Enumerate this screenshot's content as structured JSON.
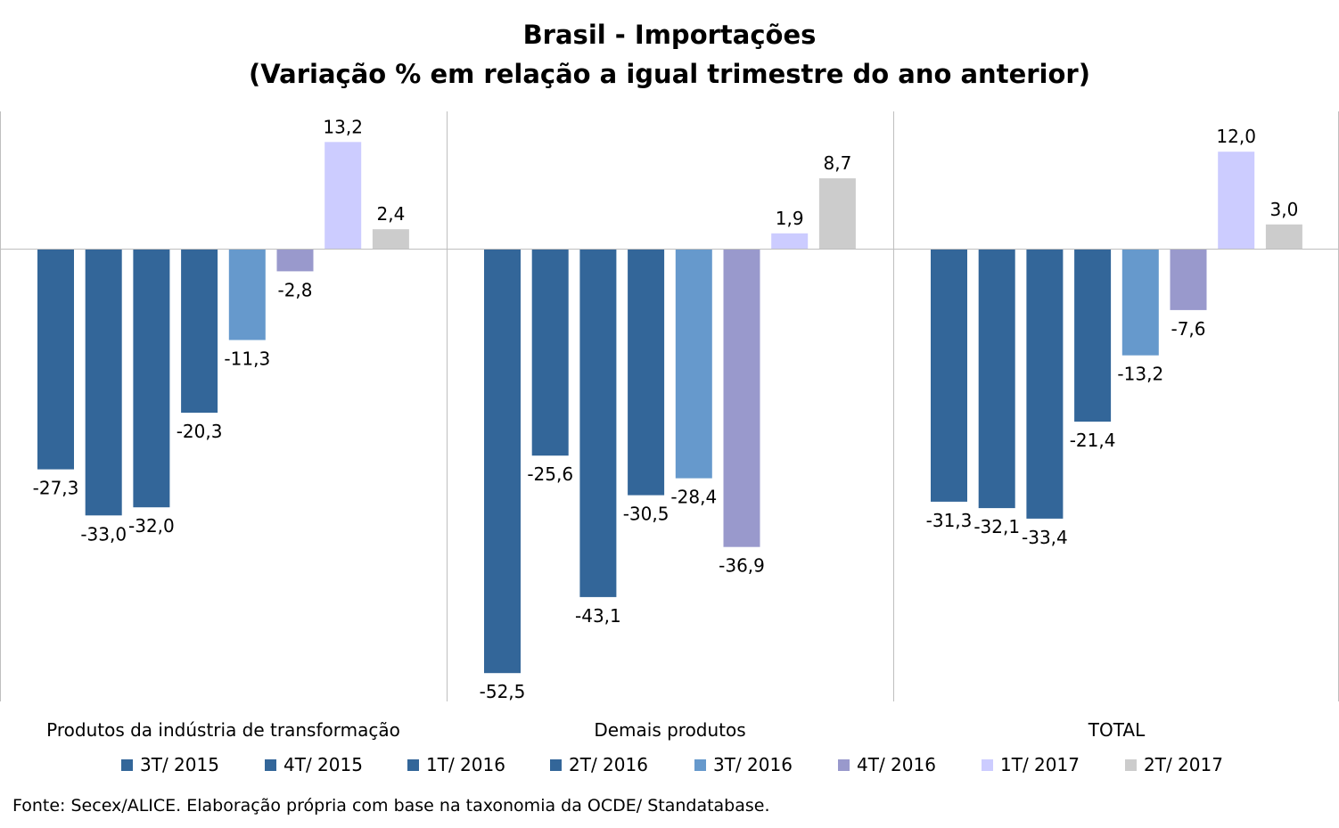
{
  "title": "Brasil - Importações",
  "subtitle": "(Variação % em relação a igual trimestre do ano anterior)",
  "source": "Fonte: Secex/ALICE. Elaboração própria com base na taxonomia da OCDE/ Standatabase.",
  "chart_data": {
    "type": "bar",
    "title": "Brasil - Importações",
    "subtitle": "(Variação % em relação a igual trimestre do ano anterior)",
    "categories": [
      "Produtos da indústria de transformação",
      "Demais produtos",
      "TOTAL"
    ],
    "ylim": [
      -56,
      17
    ],
    "grid": false,
    "legend_position": "bottom",
    "series": [
      {
        "name": "3T/ 2015",
        "color": "#336699",
        "values": [
          -27.3,
          -52.5,
          -31.3
        ],
        "labels": [
          "-27,3",
          "-52,5",
          "-31,3"
        ]
      },
      {
        "name": "4T/ 2015",
        "color": "#336699",
        "values": [
          -33.0,
          -25.6,
          -32.1
        ],
        "labels": [
          "-33,0",
          "-25,6",
          "-32,1"
        ]
      },
      {
        "name": "1T/ 2016",
        "color": "#336699",
        "values": [
          -32.0,
          -43.1,
          -33.4
        ],
        "labels": [
          "-32,0",
          "-43,1",
          "-33,4"
        ]
      },
      {
        "name": "2T/ 2016",
        "color": "#336699",
        "values": [
          -20.3,
          -30.5,
          -21.4
        ],
        "labels": [
          "-20,3",
          "-30,5",
          "-21,4"
        ]
      },
      {
        "name": "3T/ 2016",
        "color": "#6699CC",
        "values": [
          -11.3,
          -28.4,
          -13.2
        ],
        "labels": [
          "-11,3",
          "-28,4",
          "-13,2"
        ]
      },
      {
        "name": "4T/ 2016",
        "color": "#9999CC",
        "values": [
          -2.8,
          -36.9,
          -7.6
        ],
        "labels": [
          "-2,8",
          "-36,9",
          "-7,6"
        ]
      },
      {
        "name": "1T/ 2017",
        "color": "#CCCCFF",
        "values": [
          13.2,
          1.9,
          12.0
        ],
        "labels": [
          "13,2",
          "1,9",
          "12,0"
        ]
      },
      {
        "name": "2T/ 2017",
        "color": "#CCCCCC",
        "values": [
          2.4,
          8.7,
          3.0
        ],
        "labels": [
          "2,4",
          "8,7",
          "3,0"
        ]
      }
    ]
  }
}
